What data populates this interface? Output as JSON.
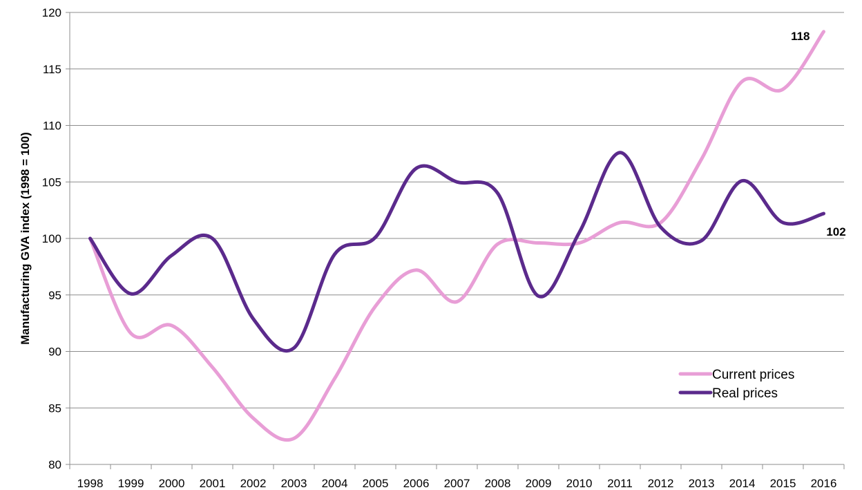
{
  "chart_data": {
    "type": "line",
    "title": "",
    "xlabel": "",
    "ylabel": "Manufacturing GVA index (1998 = 100)",
    "x": [
      "1998",
      "1999",
      "2000",
      "2001",
      "2002",
      "2003",
      "2004",
      "2005",
      "2006",
      "2007",
      "2008",
      "2009",
      "2010",
      "2011",
      "2012",
      "2013",
      "2014",
      "2015",
      "2016"
    ],
    "ylim": [
      80,
      120
    ],
    "yticks": [
      80,
      85,
      90,
      95,
      100,
      105,
      110,
      115,
      120
    ],
    "grid": "horizontal",
    "legend_position": "bottom-right",
    "series": [
      {
        "name": "Current prices",
        "color": "#e89ed6",
        "values": [
          100,
          91.6,
          92.3,
          88.6,
          84.1,
          82.3,
          87.6,
          94.0,
          97.2,
          94.4,
          99.5,
          99.6,
          99.6,
          101.4,
          101.4,
          107.0,
          113.9,
          113.2,
          118.3
        ],
        "end_label": "118"
      },
      {
        "name": "Real prices",
        "color": "#5b2a8c",
        "values": [
          100,
          95.1,
          98.5,
          100.0,
          92.9,
          90.3,
          98.6,
          100.1,
          106.2,
          105.0,
          104.0,
          94.9,
          100.5,
          107.6,
          101.0,
          99.8,
          105.1,
          101.4,
          102.2
        ],
        "end_label": "102"
      }
    ]
  }
}
